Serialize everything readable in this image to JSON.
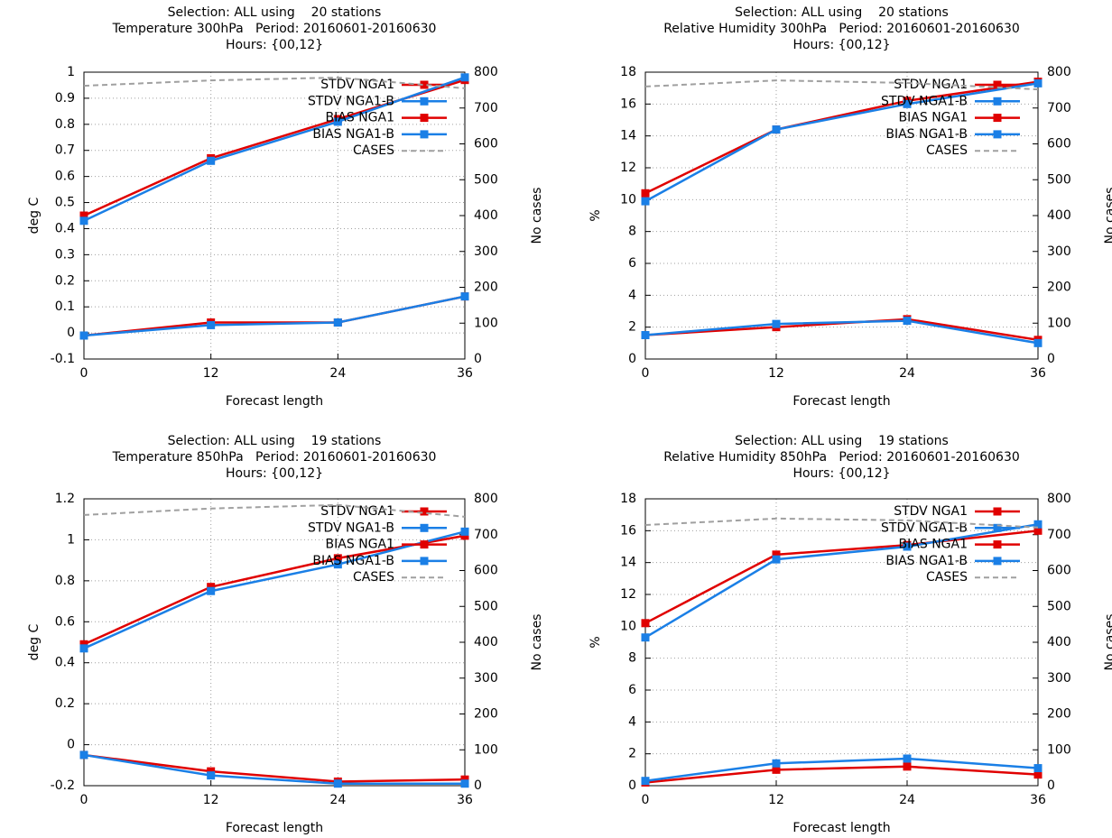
{
  "chart_data": [
    {
      "type": "line",
      "title": [
        "Selection: ALL using    20 stations",
        "Temperature 300hPa   Period: 20160601-20160630",
        "Hours: {00,12}"
      ],
      "xlabel": "Forecast length",
      "ylabel": "deg C",
      "y2label": "No cases",
      "x": [
        0,
        12,
        24,
        36
      ],
      "xlim": [
        0,
        36
      ],
      "xticks": [
        0,
        12,
        24,
        36
      ],
      "ylim": [
        -0.1,
        1
      ],
      "yticks": [
        -0.1,
        0,
        0.1,
        0.2,
        0.3,
        0.4,
        0.5,
        0.6,
        0.7,
        0.8,
        0.9,
        1
      ],
      "y2lim": [
        0,
        800
      ],
      "y2ticks": [
        0,
        100,
        200,
        300,
        400,
        500,
        600,
        700,
        800
      ],
      "grid": true,
      "legend": "top-right",
      "series": [
        {
          "name": "STDV NGA1",
          "color": "#e00000",
          "values": [
            0.45,
            0.67,
            0.82,
            0.97
          ]
        },
        {
          "name": "STDV NGA1-B",
          "color": "#1a7fe6",
          "values": [
            0.43,
            0.66,
            0.81,
            0.98
          ]
        },
        {
          "name": "BIAS NGA1",
          "color": "#e00000",
          "values": [
            -0.01,
            0.04,
            0.04,
            0.14
          ]
        },
        {
          "name": "BIAS NGA1-B",
          "color": "#1a7fe6",
          "values": [
            -0.01,
            0.03,
            0.04,
            0.14
          ]
        },
        {
          "name": "CASES",
          "color": "#a0a0a0",
          "axis": "y2",
          "dashed": true,
          "values": [
            762,
            777,
            785,
            755
          ]
        }
      ]
    },
    {
      "type": "line",
      "title": [
        "Selection: ALL using    20 stations",
        "Relative Humidity 300hPa   Period: 20160601-20160630",
        "Hours: {00,12}"
      ],
      "xlabel": "Forecast length",
      "ylabel": "%",
      "y2label": "No cases",
      "x": [
        0,
        12,
        24,
        36
      ],
      "xlim": [
        0,
        36
      ],
      "xticks": [
        0,
        12,
        24,
        36
      ],
      "ylim": [
        0,
        18
      ],
      "yticks": [
        0,
        2,
        4,
        6,
        8,
        10,
        12,
        14,
        16,
        18
      ],
      "y2lim": [
        0,
        800
      ],
      "y2ticks": [
        0,
        100,
        200,
        300,
        400,
        500,
        600,
        700,
        800
      ],
      "grid": true,
      "legend": "top-right",
      "series": [
        {
          "name": "STDV NGA1",
          "color": "#e00000",
          "values": [
            10.4,
            14.4,
            16.2,
            17.4
          ]
        },
        {
          "name": "STDV NGA1-B",
          "color": "#1a7fe6",
          "values": [
            9.9,
            14.4,
            16.0,
            17.3
          ]
        },
        {
          "name": "BIAS NGA1",
          "color": "#e00000",
          "values": [
            1.5,
            2.0,
            2.5,
            1.2
          ]
        },
        {
          "name": "BIAS NGA1-B",
          "color": "#1a7fe6",
          "values": [
            1.5,
            2.2,
            2.4,
            1.0
          ]
        },
        {
          "name": "CASES",
          "color": "#a0a0a0",
          "axis": "y2",
          "dashed": true,
          "values": [
            760,
            777,
            770,
            752
          ]
        }
      ]
    },
    {
      "type": "line",
      "title": [
        "Selection: ALL using    19 stations",
        "Temperature 850hPa   Period: 20160601-20160630",
        "Hours: {00,12}"
      ],
      "xlabel": "Forecast length",
      "ylabel": "deg C",
      "y2label": "No cases",
      "x": [
        0,
        12,
        24,
        36
      ],
      "xlim": [
        0,
        36
      ],
      "xticks": [
        0,
        12,
        24,
        36
      ],
      "ylim": [
        -0.2,
        1.2
      ],
      "yticks": [
        -0.2,
        0,
        0.2,
        0.4,
        0.6,
        0.8,
        1,
        1.2
      ],
      "y2lim": [
        0,
        800
      ],
      "y2ticks": [
        0,
        100,
        200,
        300,
        400,
        500,
        600,
        700,
        800
      ],
      "grid": true,
      "legend": "top-right",
      "series": [
        {
          "name": "STDV NGA1",
          "color": "#e00000",
          "values": [
            0.49,
            0.77,
            0.91,
            1.02
          ]
        },
        {
          "name": "STDV NGA1-B",
          "color": "#1a7fe6",
          "values": [
            0.47,
            0.75,
            0.88,
            1.04
          ]
        },
        {
          "name": "BIAS NGA1",
          "color": "#e00000",
          "values": [
            -0.05,
            -0.13,
            -0.18,
            -0.17
          ]
        },
        {
          "name": "BIAS NGA1-B",
          "color": "#1a7fe6",
          "values": [
            -0.05,
            -0.15,
            -0.19,
            -0.19
          ]
        },
        {
          "name": "CASES",
          "color": "#a0a0a0",
          "axis": "y2",
          "dashed": true,
          "values": [
            755,
            773,
            783,
            750
          ]
        }
      ]
    },
    {
      "type": "line",
      "title": [
        "Selection: ALL using    19 stations",
        "Relative Humidity 850hPa   Period: 20160601-20160630",
        "Hours: {00,12}"
      ],
      "xlabel": "Forecast length",
      "ylabel": "%",
      "y2label": "No cases",
      "x": [
        0,
        12,
        24,
        36
      ],
      "xlim": [
        0,
        36
      ],
      "xticks": [
        0,
        12,
        24,
        36
      ],
      "ylim": [
        0,
        18
      ],
      "yticks": [
        0,
        2,
        4,
        6,
        8,
        10,
        12,
        14,
        16,
        18
      ],
      "y2lim": [
        0,
        800
      ],
      "y2ticks": [
        0,
        100,
        200,
        300,
        400,
        500,
        600,
        700,
        800
      ],
      "grid": true,
      "legend": "top-right",
      "series": [
        {
          "name": "STDV NGA1",
          "color": "#e00000",
          "values": [
            10.2,
            14.5,
            15.1,
            16.0
          ]
        },
        {
          "name": "STDV NGA1-B",
          "color": "#1a7fe6",
          "values": [
            9.3,
            14.2,
            15.0,
            16.4
          ]
        },
        {
          "name": "BIAS NGA1",
          "color": "#e00000",
          "values": [
            0.2,
            1.0,
            1.2,
            0.7
          ]
        },
        {
          "name": "BIAS NGA1-B",
          "color": "#1a7fe6",
          "values": [
            0.3,
            1.4,
            1.7,
            1.1
          ]
        },
        {
          "name": "CASES",
          "color": "#a0a0a0",
          "axis": "y2",
          "dashed": true,
          "values": [
            727,
            745,
            740,
            720
          ]
        }
      ]
    }
  ]
}
